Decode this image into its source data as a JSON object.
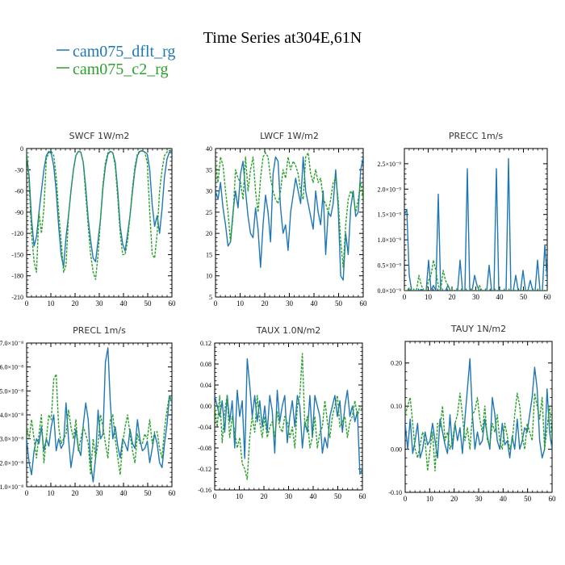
{
  "figure": {
    "title": "Time Series at304E,61N",
    "legend": [
      {
        "label": "cam075_dflt_rg",
        "color": "#1f77b4"
      },
      {
        "label": "cam075_c2_rg",
        "color": "#2ca02c"
      }
    ]
  },
  "chart_data": [
    {
      "type": "line",
      "title": "SWCF   1W/m2",
      "ylim": [
        -210,
        0
      ],
      "yticks": [
        0,
        -30,
        -60,
        -90,
        -120,
        -150,
        -180,
        -210
      ],
      "yticklabels": [
        "0",
        "-30",
        "-60",
        "-90",
        "-120",
        "-150",
        "-180",
        "-210"
      ],
      "xlim": [
        0,
        60
      ],
      "xticks": [
        0,
        10,
        20,
        30,
        40,
        50,
        60
      ],
      "series": [
        {
          "name": "cam075_dflt_rg",
          "color": "#1f77b4",
          "values": [
            -8,
            -40,
            -100,
            -138,
            -125,
            -90,
            -60,
            -30,
            -10,
            -4,
            -7,
            -25,
            -60,
            -110,
            -150,
            -168,
            -125,
            -95,
            -60,
            -30,
            -10,
            -4,
            -5,
            -20,
            -55,
            -100,
            -130,
            -155,
            -160,
            -130,
            -100,
            -55,
            -25,
            -8,
            -4,
            -6,
            -20,
            -60,
            -110,
            -135,
            -145,
            -120,
            -95,
            -60,
            -30,
            -10,
            -4,
            -3,
            -5,
            -8,
            -30,
            -80,
            -110,
            -95,
            -120,
            -85,
            -40,
            -15,
            -5,
            -3
          ]
        },
        {
          "name": "cam075_c2_rg",
          "color": "#2ca02c",
          "values": [
            -4,
            -50,
            -120,
            -160,
            -175,
            -90,
            -120,
            -85,
            -15,
            -6,
            -4,
            -10,
            -40,
            -90,
            -130,
            -175,
            -165,
            -95,
            -60,
            -30,
            -10,
            -4,
            -5,
            -20,
            -65,
            -110,
            -150,
            -175,
            -185,
            -150,
            -100,
            -50,
            -20,
            -6,
            -4,
            -6,
            -25,
            -70,
            -120,
            -150,
            -150,
            -130,
            -95,
            -55,
            -25,
            -8,
            -3,
            -4,
            -5,
            -20,
            -90,
            -150,
            -155,
            -120,
            -60,
            -30,
            -10,
            -5,
            -3,
            -2
          ]
        }
      ]
    },
    {
      "type": "line",
      "title": "LWCF   1W/m2",
      "ylim": [
        5,
        40
      ],
      "yticks": [
        5,
        10,
        15,
        20,
        25,
        30,
        35,
        40
      ],
      "yticklabels": [
        "5",
        "10",
        "15",
        "20",
        "25",
        "30",
        "35",
        "40"
      ],
      "xlim": [
        0,
        60
      ],
      "xticks": [
        0,
        10,
        20,
        30,
        40,
        50,
        60
      ],
      "series": [
        {
          "name": "cam075_dflt_rg",
          "color": "#1f77b4",
          "values": [
            30,
            28,
            32,
            26,
            22,
            17,
            18,
            25,
            30,
            26,
            34,
            37,
            30,
            24,
            20,
            19,
            26,
            21,
            12,
            22,
            29,
            25,
            18,
            34,
            38,
            37,
            26,
            20,
            22,
            16,
            25,
            29,
            33,
            30,
            27,
            38,
            30,
            27,
            24,
            21,
            30,
            25,
            22,
            30,
            15,
            25,
            24,
            27,
            35,
            26,
            10,
            9,
            20,
            15,
            26,
            30,
            24,
            25,
            35,
            38
          ]
        },
        {
          "name": "cam075_c2_rg",
          "color": "#2ca02c",
          "values": [
            37,
            32,
            38,
            36,
            30,
            25,
            18,
            24,
            35,
            33,
            32,
            28,
            38,
            30,
            35,
            38,
            30,
            25,
            33,
            38,
            39,
            38,
            33,
            30,
            28,
            27,
            30,
            35,
            33,
            38,
            35,
            37,
            36,
            34,
            30,
            28,
            38,
            39,
            34,
            32,
            35,
            32,
            33,
            28,
            27,
            25,
            28,
            32,
            33,
            28,
            18,
            12,
            22,
            28,
            30,
            29,
            25,
            28,
            32,
            28
          ]
        }
      ]
    },
    {
      "type": "line",
      "title": "PRECC   1m/s",
      "ylim": [
        0,
        2.8e-09
      ],
      "yticks": [
        0,
        5e-10,
        1e-09,
        1.5e-09,
        2e-09,
        2.5e-09
      ],
      "yticklabels": [
        "0.0×10⁻⁹",
        "0.5×10⁻⁹",
        "1.0×10⁻⁹",
        "1.5×10⁻⁹",
        "2.0×10⁻⁹",
        "2.5×10⁻⁹"
      ],
      "xlim": [
        0,
        60
      ],
      "xticks": [
        0,
        10,
        20,
        30,
        40,
        50,
        60
      ],
      "series": [
        {
          "name": "cam075_dflt_rg",
          "color": "#1f77b4",
          "values": [
            1.5e-09,
            1.6e-09,
            3e-10,
            0,
            0,
            0,
            0,
            2e-11,
            0,
            0,
            6e-10,
            0,
            1e-10,
            0,
            1.9e-09,
            0,
            0,
            0,
            1e-10,
            0,
            0,
            0,
            0,
            6e-10,
            0,
            0,
            2.4e-09,
            0,
            0,
            3e-10,
            1e-10,
            0,
            0,
            0,
            0,
            5e-10,
            0,
            0,
            2.4e-09,
            0,
            0,
            0,
            0,
            2.6e-09,
            0,
            0,
            3e-10,
            0,
            0,
            4e-10,
            0,
            0,
            2e-10,
            0,
            0,
            6e-10,
            0,
            0,
            9e-10,
            2e-10
          ]
        },
        {
          "name": "cam075_c2_rg",
          "color": "#2ca02c",
          "values": [
            0,
            0,
            5e-11,
            0,
            0,
            0,
            3e-10,
            1e-10,
            0,
            0,
            2e-10,
            3e-10,
            6e-10,
            4e-10,
            1e-10,
            0,
            4e-10,
            2e-10,
            1e-10,
            0,
            0,
            0,
            0,
            0,
            0,
            0,
            0,
            0,
            0,
            0,
            0,
            1e-10,
            0,
            0,
            0,
            0,
            0,
            0,
            0,
            0,
            0,
            0,
            0,
            0,
            0,
            0,
            0,
            0,
            0,
            0,
            0,
            0,
            0,
            0,
            0,
            0,
            0,
            0,
            0,
            0
          ]
        }
      ]
    },
    {
      "type": "line",
      "title": "PRECL   1m/s",
      "ylim": [
        1e-08,
        7e-08
      ],
      "yticks": [
        1e-08,
        2e-08,
        3e-08,
        4e-08,
        5e-08,
        6e-08,
        7e-08
      ],
      "yticklabels": [
        "1.0×10⁻⁸",
        "2.0×10⁻⁸",
        "3.0×10⁻⁸",
        "4.0×10⁻⁸",
        "5.0×10⁻⁸",
        "6.0×10⁻⁸",
        "7.0×10⁻⁸"
      ],
      "xlim": [
        0,
        60
      ],
      "xticks": [
        0,
        10,
        20,
        30,
        40,
        50,
        60
      ],
      "series": [
        {
          "name": "cam075_dflt_rg",
          "color": "#1f77b4",
          "values": [
            3e-08,
            2e-08,
            1.5e-08,
            2.5e-08,
            3e-08,
            2.8e-08,
            3.5e-08,
            2.5e-08,
            3e-08,
            2.7e-08,
            3.5e-08,
            4e-08,
            2.5e-08,
            3e-08,
            2.6e-08,
            2.8e-08,
            4.5e-08,
            3e-08,
            1.8e-08,
            2.5e-08,
            3.4e-08,
            2.6e-08,
            2.3e-08,
            3.6e-08,
            4.5e-08,
            3.8e-08,
            2e-08,
            1.2e-08,
            2.2e-08,
            4.2e-08,
            3e-08,
            3.2e-08,
            6.2e-08,
            6.8e-08,
            4.5e-08,
            3e-08,
            3.5e-08,
            2.7e-08,
            2.2e-08,
            3e-08,
            2.8e-08,
            2.5e-08,
            3.4e-08,
            2.8e-08,
            2.6e-08,
            3.8e-08,
            3e-08,
            2.5e-08,
            2.6e-08,
            2.9e-08,
            2e-08,
            2.6e-08,
            3.2e-08,
            2.8e-08,
            2e-08,
            1.8e-08,
            2.8e-08,
            3.6e-08,
            4.8e-08,
            4.5e-08
          ]
        },
        {
          "name": "cam075_c2_rg",
          "color": "#2ca02c",
          "values": [
            3.5e-08,
            3e-08,
            3.8e-08,
            3e-08,
            2.2e-08,
            3.2e-08,
            4e-08,
            2e-08,
            3e-08,
            4e-08,
            3.8e-08,
            5.5e-08,
            5.7e-08,
            3.5e-08,
            2.8e-08,
            3e-08,
            3.2e-08,
            4.2e-08,
            3.5e-08,
            3e-08,
            3.8e-08,
            2.5e-08,
            3e-08,
            3.5e-08,
            3.2e-08,
            2.8e-08,
            1.5e-08,
            3e-08,
            2.2e-08,
            2.8e-08,
            4e-08,
            3.5e-08,
            2.8e-08,
            2.2e-08,
            3.8e-08,
            4e-08,
            3e-08,
            2.2e-08,
            1.5e-08,
            2.8e-08,
            3.5e-08,
            4e-08,
            3.2e-08,
            2.5e-08,
            2e-08,
            3.2e-08,
            2.8e-08,
            2.8e-08,
            3.2e-08,
            3e-08,
            3.8e-08,
            2.8e-08,
            3.3e-08,
            3.3e-08,
            2.6e-08,
            2.2e-08,
            3.4e-08,
            4.2e-08,
            4.8e-08,
            4.6e-08
          ]
        }
      ]
    },
    {
      "type": "line",
      "title": "TAUX   1.0N/m2",
      "ylim": [
        -0.16,
        0.12
      ],
      "yticks": [
        -0.16,
        -0.12,
        -0.08,
        -0.04,
        0.0,
        0.04,
        0.08,
        0.12
      ],
      "yticklabels": [
        "-0.16",
        "-0.12",
        "-0.08",
        "-0.04",
        "0.00",
        "0.04",
        "0.08",
        "0.12"
      ],
      "xlim": [
        0,
        60
      ],
      "xticks": [
        0,
        10,
        20,
        30,
        40,
        50,
        60
      ],
      "series": [
        {
          "name": "cam075_dflt_rg",
          "color": "#1f77b4",
          "values": [
            0.02,
            0.0,
            -0.02,
            0.01,
            -0.05,
            0.02,
            -0.03,
            0.01,
            -0.08,
            0.03,
            -0.02,
            0.01,
            -0.1,
            0.09,
            0.04,
            -0.02,
            0.02,
            -0.03,
            0.01,
            -0.04,
            0.0,
            -0.05,
            0.02,
            -0.01,
            -0.09,
            0.03,
            -0.03,
            0.0,
            0.02,
            -0.07,
            -0.02,
            0.01,
            -0.04,
            0.02,
            0.0,
            -0.08,
            -0.03,
            -0.05,
            0.02,
            -0.06,
            0.02,
            0.0,
            -0.02,
            -0.09,
            -0.06,
            -0.08,
            -0.02,
            0.0,
            0.02,
            -0.02,
            0.01,
            -0.05,
            0.0,
            0.03,
            -0.02,
            0.0,
            -0.03,
            -0.01,
            -0.13,
            -0.12
          ]
        },
        {
          "name": "cam075_c2_rg",
          "color": "#2ca02c",
          "values": [
            0.0,
            -0.04,
            0.02,
            -0.07,
            -0.01,
            0.02,
            -0.06,
            -0.02,
            -0.05,
            -0.08,
            -0.06,
            -0.11,
            -0.12,
            -0.14,
            -0.06,
            -0.02,
            -0.05,
            0.02,
            -0.03,
            -0.06,
            -0.02,
            -0.06,
            -0.04,
            -0.03,
            -0.06,
            -0.01,
            -0.04,
            -0.05,
            -0.02,
            -0.03,
            -0.06,
            -0.04,
            -0.08,
            0.0,
            0.02,
            0.1,
            -0.04,
            -0.02,
            -0.08,
            -0.06,
            -0.02,
            -0.08,
            -0.05,
            -0.04,
            0.01,
            -0.03,
            -0.06,
            -0.02,
            0.0,
            0.02,
            -0.04,
            -0.03,
            -0.02,
            -0.06,
            -0.03,
            -0.02,
            0.01,
            -0.02,
            0.0,
            -0.01
          ]
        }
      ]
    },
    {
      "type": "line",
      "title": "TAUY   1N/m2",
      "ylim": [
        -0.1,
        0.25
      ],
      "yticks": [
        -0.1,
        0.0,
        0.1,
        0.2
      ],
      "yticklabels": [
        "-0.10",
        "0.00",
        "0.10",
        "0.20"
      ],
      "xlim": [
        0,
        60
      ],
      "xticks": [
        0,
        10,
        20,
        30,
        40,
        50,
        60
      ],
      "series": [
        {
          "name": "cam075_dflt_rg",
          "color": "#1f77b4",
          "values": [
            0.06,
            0.0,
            0.07,
            -0.01,
            0.02,
            0.06,
            -0.02,
            0.0,
            0.04,
            0.01,
            0.02,
            0.06,
            0.02,
            -0.02,
            0.07,
            0.04,
            0.01,
            -0.01,
            0.08,
            0.0,
            0.06,
            0.02,
            0.05,
            -0.01,
            0.07,
            0.14,
            0.21,
            0.08,
            0.0,
            0.04,
            0.01,
            0.02,
            0.07,
            0.03,
            0.0,
            0.12,
            0.08,
            0.02,
            0.0,
            0.06,
            0.01,
            0.02,
            -0.02,
            0.03,
            0.0,
            0.07,
            0.0,
            0.02,
            0.05,
            0.04,
            0.08,
            0.12,
            0.19,
            0.14,
            0.02,
            -0.02,
            0.0,
            0.14,
            0.04,
            0.0
          ]
        },
        {
          "name": "cam075_c2_rg",
          "color": "#2ca02c",
          "values": [
            0.08,
            0.1,
            0.12,
            0.06,
            0.0,
            -0.02,
            0.01,
            0.04,
            0.02,
            -0.05,
            0.0,
            0.04,
            -0.05,
            0.06,
            0.05,
            0.1,
            0.02,
            0.04,
            0.0,
            0.02,
            0.06,
            0.08,
            0.13,
            0.08,
            0.02,
            0.05,
            0.0,
            0.08,
            0.09,
            0.12,
            0.07,
            0.04,
            0.1,
            0.02,
            0.01,
            0.06,
            0.04,
            0.08,
            0.02,
            0.0,
            0.06,
            0.03,
            0.0,
            0.02,
            0.08,
            0.13,
            0.1,
            0.03,
            0.0,
            0.06,
            0.04,
            0.02,
            0.13,
            0.1,
            0.07,
            0.12,
            0.0,
            0.05,
            0.1,
            0.02
          ]
        }
      ]
    }
  ]
}
